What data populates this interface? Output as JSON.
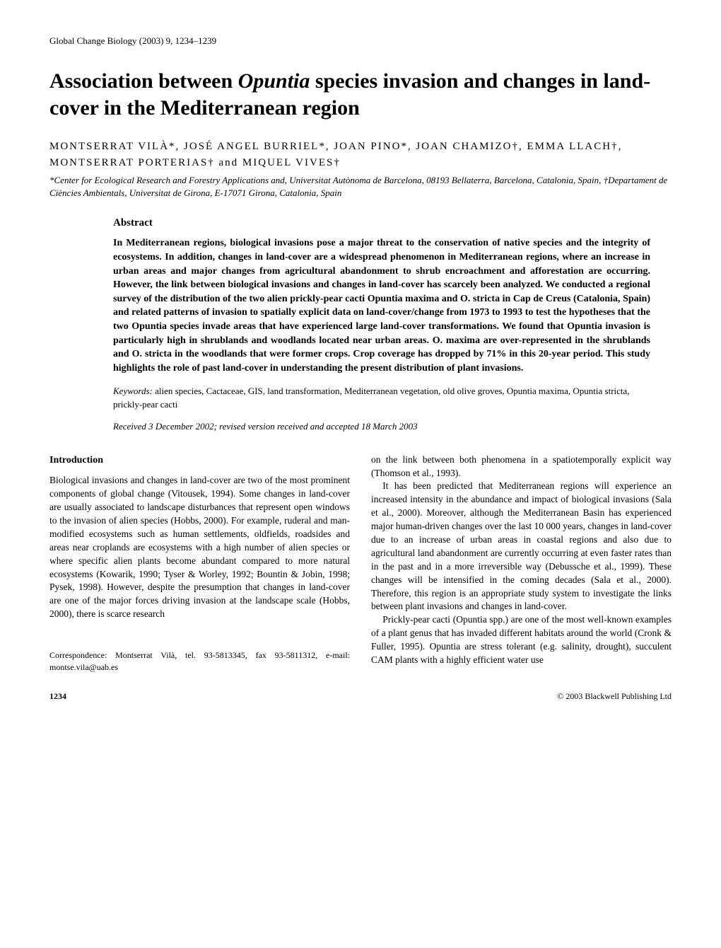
{
  "journal_header": "Global Change Biology (2003) 9, 1234–1239",
  "title_line1": "Association between ",
  "title_italic": "Opuntia",
  "title_line2": " species invasion and changes in land-cover in the Mediterranean region",
  "authors": "MONTSERRAT VILÀ*, JOSÉ ANGEL BURRIEL*, JOAN PINO*, JOAN CHAMIZO†, EMMA LLACH†, MONTSERRAT PORTERIAS† and MIQUEL VIVES†",
  "affiliations": "*Center for Ecological Research and Forestry Applications and, Universitat Autònoma de Barcelona, 08193 Bellaterra, Barcelona, Catalonia, Spain, †Departament de Ciències Ambientals, Universitat de Girona, E-17071 Girona, Catalonia, Spain",
  "abstract": {
    "heading": "Abstract",
    "text": "In Mediterranean regions, biological invasions pose a major threat to the conservation of native species and the integrity of ecosystems. In addition, changes in land-cover are a widespread phenomenon in Mediterranean regions, where an increase in urban areas and major changes from agricultural abandonment to shrub encroachment and afforestation are occurring. However, the link between biological invasions and changes in land-cover has scarcely been analyzed. We conducted a regional survey of the distribution of the two alien prickly-pear cacti Opuntia maxima and O. stricta in Cap de Creus (Catalonia, Spain) and related patterns of invasion to spatially explicit data on land-cover/change from 1973 to 1993 to test the hypotheses that the two Opuntia species invade areas that have experienced large land-cover transformations. We found that Opuntia invasion is particularly high in shrublands and woodlands located near urban areas. O. maxima are over-represented in the shrublands and O. stricta in the woodlands that were former crops. Crop coverage has dropped by 71% in this 20-year period. This study highlights the role of past land-cover in understanding the present distribution of plant invasions."
  },
  "keywords": {
    "label": "Keywords:",
    "text": " alien species, Cactaceae, GIS, land transformation, Mediterranean vegetation, old olive groves, Opuntia maxima, Opuntia stricta, prickly-pear cacti"
  },
  "received": "Received 3 December 2002; revised version received and accepted 18 March 2003",
  "introduction": {
    "heading": "Introduction",
    "col1_para1": "Biological invasions and changes in land-cover are two of the most prominent components of global change (Vitousek, 1994). Some changes in land-cover are usually associated to landscape disturbances that represent open windows to the invasion of alien species (Hobbs, 2000). For example, ruderal and man-modified ecosystems such as human settlements, oldfields, roadsides and areas near croplands are ecosystems with a high number of alien species or where specific alien plants become abundant compared to more natural ecosystems (Kowarik, 1990; Tyser & Worley, 1992; Bountin & Jobin, 1998; Pysek, 1998). However, despite the presumption that changes in land-cover are one of the major forces driving invasion at the landscape scale (Hobbs, 2000), there is scarce research",
    "col2_sentence1": "on the link between both phenomena in a spatiotemporally explicit way (Thomson et al., 1993).",
    "col2_para2": "It has been predicted that Mediterranean regions will experience an increased intensity in the abundance and impact of biological invasions (Sala et al., 2000). Moreover, although the Mediterranean Basin has experienced major human-driven changes over the last 10 000 years, changes in land-cover due to an increase of urban areas in coastal regions and also due to agricultural land abandonment are currently occurring at even faster rates than in the past and in a more irreversible way (Debussche et al., 1999). These changes will be intensified in the coming decades (Sala et al., 2000). Therefore, this region is an appropriate study system to investigate the links between plant invasions and changes in land-cover.",
    "col2_para3": "Prickly-pear cacti (Opuntia spp.) are one of the most well-known examples of a plant genus that has invaded different habitats around the world (Cronk & Fuller, 1995). Opuntia are stress tolerant (e.g. salinity, drought), succulent CAM plants with a highly efficient water use"
  },
  "correspondence": "Correspondence: Montserrat Vilà, tel. 93-5813345, fax 93-5811312, e-mail: montse.vila@uab.es",
  "footer": {
    "page_number": "1234",
    "copyright": "© 2003 Blackwell Publishing Ltd"
  }
}
